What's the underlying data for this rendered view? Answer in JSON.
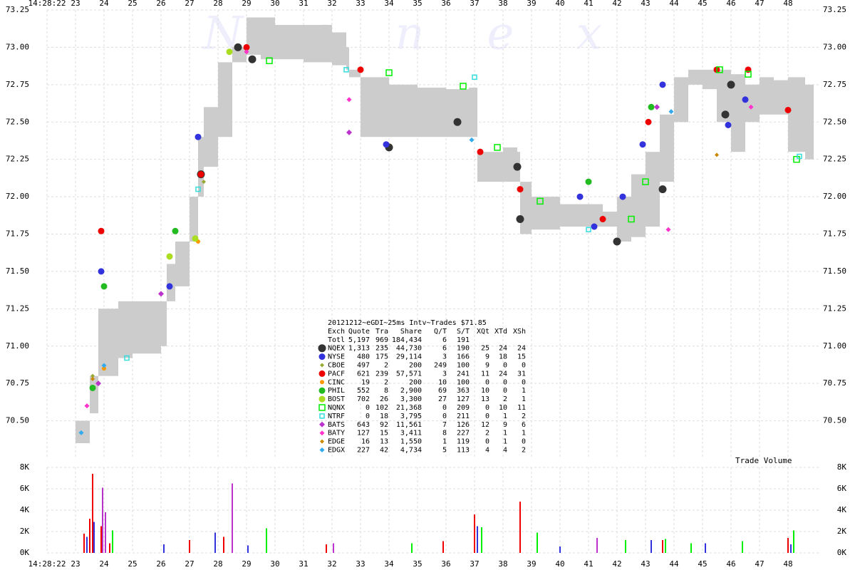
{
  "chart_data": [
    {
      "type": "scatter",
      "watermark": "N a n e x",
      "xlim": [
        22,
        49.1
      ],
      "xticks": [
        {
          "value": 22,
          "label": "14:28:22"
        },
        23,
        24,
        25,
        26,
        27,
        28,
        29,
        30,
        31,
        32,
        33,
        34,
        35,
        36,
        37,
        38,
        39,
        40,
        41,
        42,
        43,
        44,
        45,
        46,
        47,
        48
      ],
      "ylim": [
        70.25,
        73.25
      ],
      "yticks": [
        {
          "value": 70.5,
          "label": "70.50"
        },
        {
          "value": 70.75,
          "label": "70.75"
        },
        {
          "value": 71,
          "label": "71.00"
        },
        {
          "value": 71.25,
          "label": "71.25"
        },
        {
          "value": 71.5,
          "label": "71.50"
        },
        {
          "value": 71.75,
          "label": "71.75"
        },
        {
          "value": 72,
          "label": "72.00"
        },
        {
          "value": 72.25,
          "label": "72.25"
        },
        {
          "value": 72.5,
          "label": "72.50"
        },
        {
          "value": 72.75,
          "label": "72.75"
        },
        {
          "value": 73,
          "label": "73.00"
        },
        {
          "value": 73.25,
          "label": "73.25"
        }
      ],
      "grid": true,
      "nbbo": {
        "color": "#cccccc",
        "x": [
          23.0,
          23.5,
          23.8,
          24.5,
          25.0,
          26.0,
          26.2,
          26.5,
          27.0,
          27.3,
          27.5,
          28.0,
          28.5,
          29.0,
          29.5,
          30.0,
          31.0,
          32.0,
          32.5,
          32.6,
          33.0,
          34.0,
          35.0,
          36.0,
          36.8,
          37.1,
          38.0,
          38.5,
          38.6,
          39.0,
          40.0,
          41.0,
          41.5,
          42.0,
          42.5,
          43.0,
          43.5,
          44.0,
          44.5,
          45.0,
          45.5,
          46.0,
          46.5,
          47.0,
          47.5,
          48.0,
          48.6
        ],
        "bid": [
          70.35,
          70.55,
          70.8,
          70.92,
          70.95,
          71.0,
          71.3,
          71.4,
          71.7,
          72.0,
          72.2,
          72.4,
          72.9,
          72.95,
          72.92,
          72.92,
          72.9,
          72.88,
          72.85,
          72.8,
          72.4,
          72.4,
          72.4,
          72.4,
          72.4,
          72.1,
          72.1,
          72.1,
          71.75,
          71.78,
          71.8,
          71.8,
          71.8,
          71.7,
          71.73,
          71.8,
          72.1,
          72.5,
          72.75,
          72.72,
          72.5,
          72.3,
          72.5,
          72.55,
          72.55,
          72.3,
          72.25
        ],
        "ask": [
          70.5,
          70.8,
          71.25,
          71.3,
          71.3,
          71.3,
          71.55,
          71.7,
          72.0,
          72.4,
          72.6,
          72.9,
          73.0,
          73.2,
          73.2,
          73.15,
          73.15,
          73.1,
          73.0,
          72.85,
          72.8,
          72.75,
          72.73,
          72.72,
          72.73,
          72.3,
          72.33,
          72.3,
          72.1,
          72.0,
          71.95,
          71.95,
          71.9,
          72.0,
          72.15,
          72.3,
          72.55,
          72.8,
          72.85,
          72.85,
          72.85,
          72.82,
          72.75,
          72.8,
          72.78,
          72.8,
          72.75
        ],
        "end": 48.9
      },
      "series": [
        {
          "name": "NQEX",
          "color": "#333333",
          "marker": "circle",
          "size": 5,
          "x": [
            27.4,
            28.7,
            29.2,
            34.0,
            36.4,
            38.5,
            38.6,
            42.0,
            43.6,
            45.8,
            46.0
          ],
          "y": [
            72.15,
            73.0,
            72.92,
            72.33,
            72.5,
            72.2,
            71.85,
            71.7,
            72.05,
            72.55,
            72.75
          ]
        },
        {
          "name": "NYSE",
          "color": "#3333dd",
          "marker": "circle",
          "size": 4,
          "x": [
            23.9,
            26.3,
            27.3,
            33.9,
            40.7,
            41.2,
            42.2,
            42.9,
            43.6,
            45.9,
            46.5
          ],
          "y": [
            71.5,
            71.4,
            72.4,
            72.35,
            72.0,
            71.8,
            72.0,
            72.35,
            72.75,
            72.48,
            72.65
          ]
        },
        {
          "name": "CBOE",
          "color": "#99aa33",
          "marker": "diamond",
          "size": 3,
          "x": [
            23.6,
            27.5
          ],
          "y": [
            70.8,
            72.1
          ]
        },
        {
          "name": "PACF",
          "color": "#ee0000",
          "marker": "circle",
          "size": 4,
          "x": [
            23.9,
            27.4,
            29.0,
            33.0,
            37.2,
            38.6,
            41.5,
            43.1,
            45.5,
            46.6,
            48.0
          ],
          "y": [
            71.77,
            72.15,
            73.0,
            72.85,
            72.3,
            72.05,
            71.85,
            72.5,
            72.85,
            72.85,
            72.58
          ]
        },
        {
          "name": "CINC",
          "color": "#ff9900",
          "marker": "circle",
          "size": 2.5,
          "x": [
            24.0,
            27.3
          ],
          "y": [
            70.85,
            71.7
          ]
        },
        {
          "name": "PHIL",
          "color": "#22bb22",
          "marker": "circle",
          "size": 4,
          "x": [
            23.6,
            24.0,
            26.5,
            41.0,
            43.2
          ],
          "y": [
            70.72,
            71.4,
            71.77,
            72.1,
            72.6
          ]
        },
        {
          "name": "BOST",
          "color": "#aadd22",
          "marker": "circle",
          "size": 4,
          "x": [
            26.3,
            27.2,
            28.4
          ],
          "y": [
            71.6,
            71.72,
            72.97
          ]
        },
        {
          "name": "NQNX",
          "color": "#00ee00",
          "marker": "square",
          "size": 4,
          "x": [
            29.8,
            34.0,
            36.6,
            37.8,
            39.3,
            42.5,
            43.0,
            45.6,
            46.6,
            48.3
          ],
          "y": [
            72.91,
            72.83,
            72.74,
            72.33,
            71.97,
            71.85,
            72.1,
            72.85,
            72.82,
            72.25
          ]
        },
        {
          "name": "NTRF",
          "color": "#33dddd",
          "marker": "square",
          "size": 3,
          "x": [
            24.8,
            27.3,
            32.5,
            37.0,
            41.0,
            48.4
          ],
          "y": [
            70.92,
            72.05,
            72.85,
            72.8,
            71.78,
            72.27
          ]
        },
        {
          "name": "BATS",
          "color": "#bb33cc",
          "marker": "diamond",
          "size": 4,
          "x": [
            23.8,
            26.0,
            32.6,
            43.4
          ],
          "y": [
            70.75,
            71.35,
            72.43,
            72.6
          ]
        },
        {
          "name": "BATY",
          "color": "#ff33cc",
          "marker": "diamond",
          "size": 3.5,
          "x": [
            23.4,
            29.0,
            43.8,
            46.7,
            32.6
          ],
          "y": [
            70.6,
            72.97,
            71.78,
            72.6,
            72.65
          ]
        },
        {
          "name": "EDGE",
          "color": "#cc8800",
          "marker": "diamond",
          "size": 3,
          "x": [
            23.6,
            45.5
          ],
          "y": [
            70.78,
            72.28
          ]
        },
        {
          "name": "EDGX",
          "color": "#33aaee",
          "marker": "diamond",
          "size": 3.5,
          "x": [
            23.2,
            24.0,
            36.9,
            43.9
          ],
          "y": [
            70.42,
            70.87,
            72.38,
            72.57
          ]
        }
      ],
      "legend_table": {
        "title": "20121212~eGDI~25ms Intv~Trades $71.85",
        "columns": [
          "Exch",
          "Quote",
          "Tra",
          "Share",
          "Q/T",
          "S/T",
          "XQt",
          "XTd",
          "XSh"
        ],
        "rows": [
          [
            "Totl",
            "5,197",
            "969",
            "184,434",
            "6",
            "191"
          ],
          [
            "NQEX",
            "1,313",
            "235",
            "44,730",
            "6",
            "190",
            "25",
            "24",
            "24"
          ],
          [
            "NYSE",
            "480",
            "175",
            "29,114",
            "3",
            "166",
            "9",
            "18",
            "15"
          ],
          [
            "CBOE",
            "497",
            "2",
            "200",
            "249",
            "100",
            "9",
            "0",
            "0"
          ],
          [
            "PACF",
            "621",
            "239",
            "57,571",
            "3",
            "241",
            "11",
            "24",
            "31"
          ],
          [
            "CINC",
            "19",
            "2",
            "200",
            "10",
            "100",
            "0",
            "0",
            "0"
          ],
          [
            "PHIL",
            "552",
            "8",
            "2,900",
            "69",
            "363",
            "10",
            "0",
            "1"
          ],
          [
            "BOST",
            "702",
            "26",
            "3,300",
            "27",
            "127",
            "13",
            "2",
            "1"
          ],
          [
            "NQNX",
            "0",
            "102",
            "21,368",
            "0",
            "209",
            "0",
            "10",
            "11"
          ],
          [
            "NTRF",
            "0",
            "18",
            "3,795",
            "0",
            "211",
            "0",
            "1",
            "2"
          ],
          [
            "BATS",
            "643",
            "92",
            "11,561",
            "7",
            "126",
            "12",
            "9",
            "6"
          ],
          [
            "BATY",
            "127",
            "15",
            "3,411",
            "8",
            "227",
            "2",
            "1",
            "1"
          ],
          [
            "EDGE",
            "16",
            "13",
            "1,550",
            "1",
            "119",
            "0",
            "1",
            "0"
          ],
          [
            "EDGX",
            "227",
            "42",
            "4,734",
            "5",
            "113",
            "4",
            "4",
            "2"
          ]
        ]
      }
    },
    {
      "type": "bar",
      "title": "Trade Volume",
      "xlim": [
        22,
        49.1
      ],
      "xticks": [
        {
          "value": 22,
          "label": "14:28:22"
        },
        23,
        24,
        25,
        26,
        27,
        28,
        29,
        30,
        31,
        32,
        33,
        34,
        35,
        36,
        37,
        38,
        39,
        40,
        41,
        42,
        43,
        44,
        45,
        46,
        47,
        48
      ],
      "ylim": [
        0,
        8000
      ],
      "yticks": [
        {
          "value": 0,
          "label": "0K"
        },
        {
          "value": 2000,
          "label": "2K"
        },
        {
          "value": 4000,
          "label": "4K"
        },
        {
          "value": 6000,
          "label": "6K"
        },
        {
          "value": 8000,
          "label": "8K"
        }
      ],
      "grid": true,
      "series": [
        {
          "name": "PACF",
          "color": "#ee0000",
          "x": [
            23.3,
            23.5,
            23.6,
            23.9,
            24.2,
            27.0,
            28.2,
            31.8,
            35.9,
            37.0,
            38.6,
            43.6,
            48.0
          ],
          "values": [
            1800,
            3200,
            7400,
            2500,
            900,
            1200,
            1500,
            800,
            1100,
            3600,
            4800,
            1200,
            1400
          ]
        },
        {
          "name": "NYSE",
          "color": "#3333dd",
          "x": [
            23.4,
            23.65,
            26.1,
            27.9,
            29.05,
            37.1,
            40.0,
            43.2,
            45.1,
            48.1
          ],
          "values": [
            1500,
            2900,
            800,
            1900,
            700,
            2500,
            600,
            1200,
            900,
            800
          ]
        },
        {
          "name": "BATS",
          "color": "#bb33cc",
          "x": [
            23.95,
            24.05,
            28.5,
            32.05,
            41.3
          ],
          "values": [
            6100,
            3800,
            6500,
            900,
            1400
          ]
        },
        {
          "name": "NQNX",
          "color": "#00ee00",
          "x": [
            24.3,
            29.7,
            34.8,
            37.25,
            39.2,
            42.3,
            43.7,
            44.6,
            46.4,
            48.2
          ],
          "values": [
            2100,
            2300,
            900,
            2400,
            1900,
            1200,
            1300,
            900,
            1100,
            2100
          ]
        }
      ]
    }
  ]
}
